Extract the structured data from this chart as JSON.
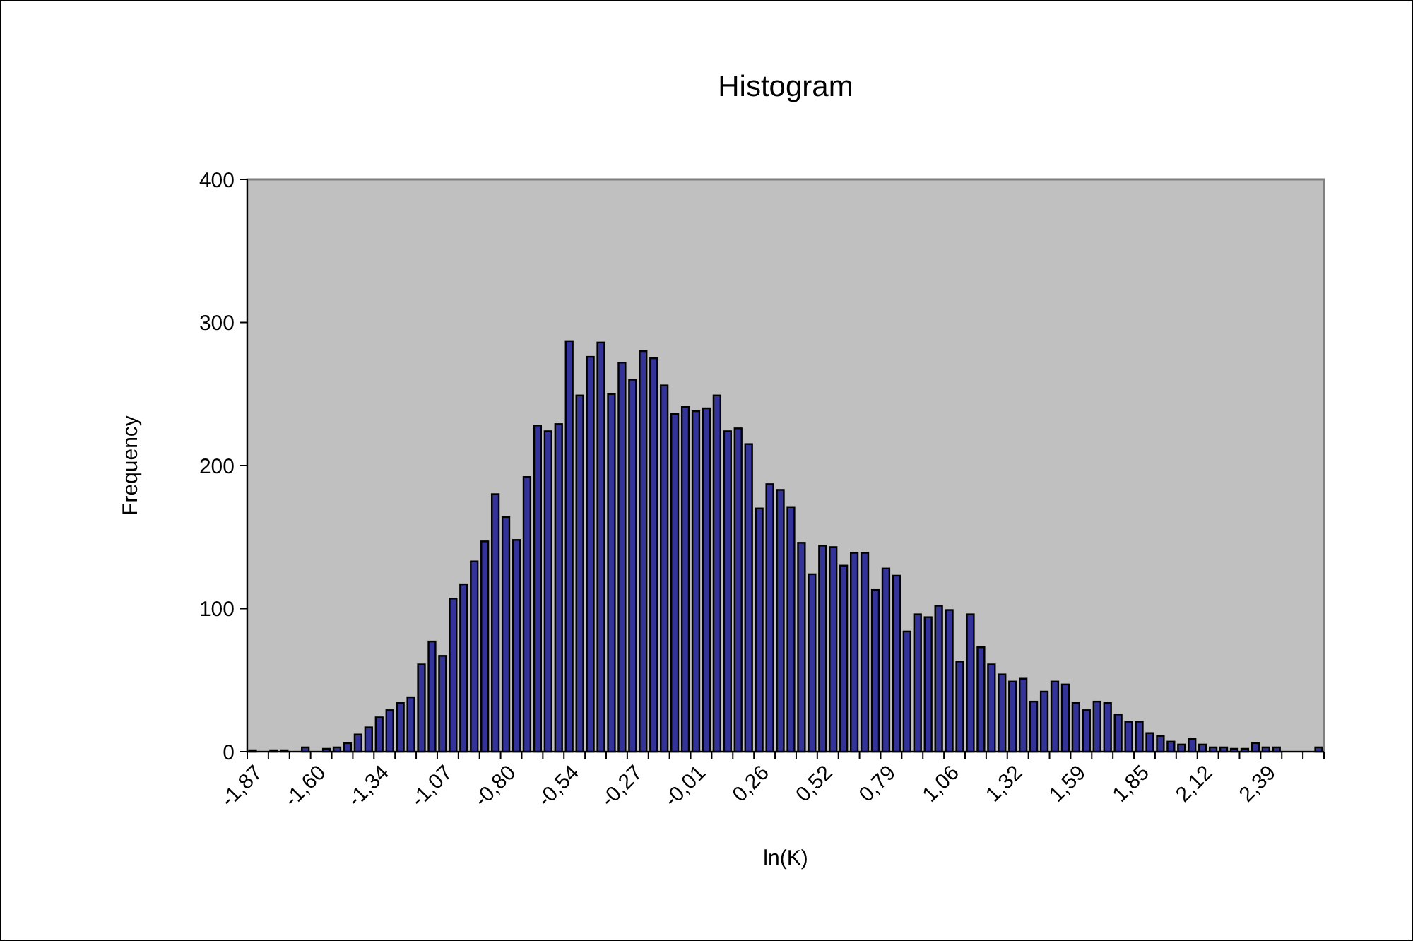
{
  "chart_data": {
    "type": "bar",
    "title": "Histogram",
    "xlabel": "ln(K)",
    "ylabel": "Frequency",
    "categories": [
      "-1,87",
      null,
      null,
      null,
      null,
      null,
      "-1,60",
      null,
      null,
      null,
      null,
      null,
      "-1,34",
      null,
      null,
      null,
      null,
      null,
      "-1,07",
      null,
      null,
      null,
      null,
      null,
      "-0,80",
      null,
      null,
      null,
      null,
      null,
      "-0,54",
      null,
      null,
      null,
      null,
      null,
      "-0,27",
      null,
      null,
      null,
      null,
      null,
      "-0,01",
      null,
      null,
      null,
      null,
      null,
      "0,26",
      null,
      null,
      null,
      null,
      null,
      "0,52",
      null,
      null,
      null,
      null,
      null,
      "0,79",
      null,
      null,
      null,
      null,
      null,
      "1,06",
      null,
      null,
      null,
      null,
      null,
      "1,32",
      null,
      null,
      null,
      null,
      null,
      "1,59",
      null,
      null,
      null,
      null,
      null,
      "1,85",
      null,
      null,
      null,
      null,
      null,
      "2,12",
      null,
      null,
      null,
      null,
      null,
      "2,39",
      null,
      null,
      null,
      null,
      null
    ],
    "values": [
      1,
      0,
      1,
      1,
      0,
      3,
      0,
      2,
      3,
      6,
      12,
      17,
      24,
      29,
      34,
      38,
      61,
      77,
      67,
      107,
      117,
      133,
      147,
      180,
      164,
      148,
      192,
      228,
      224,
      229,
      287,
      249,
      276,
      286,
      250,
      272,
      260,
      280,
      275,
      256,
      236,
      241,
      238,
      240,
      249,
      224,
      226,
      215,
      170,
      187,
      183,
      171,
      146,
      124,
      144,
      143,
      130,
      139,
      139,
      113,
      128,
      123,
      84,
      96,
      94,
      102,
      99,
      63,
      96,
      73,
      61,
      54,
      49,
      51,
      35,
      42,
      49,
      47,
      34,
      29,
      35,
      34,
      26,
      21,
      21,
      13,
      11,
      7,
      5,
      9,
      5,
      3,
      3,
      2,
      2,
      6,
      3,
      3,
      0,
      0,
      0,
      3
    ],
    "color": "#333399",
    "ylim": [
      0,
      400
    ],
    "yticks": [
      0,
      100,
      200,
      300,
      400
    ],
    "grid": false
  }
}
